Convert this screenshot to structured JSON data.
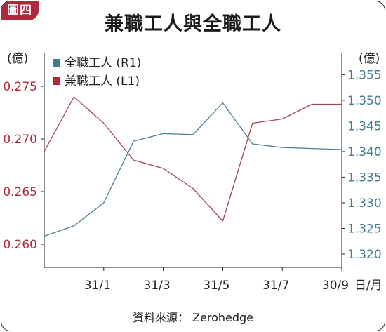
{
  "badge": "圖四",
  "chart_data": {
    "type": "line",
    "title": "兼職工人與全職工人",
    "source": "資料來源： Zerohedge",
    "x_categories": [
      "31/1",
      "31/3",
      "31/5",
      "31/7",
      "30/9"
    ],
    "x_unit": "日/月",
    "left_axis": {
      "unit": "(億)",
      "ticks": [
        "0.260",
        "0.265",
        "0.270",
        "0.275"
      ],
      "ylim": [
        0.2578,
        0.2782
      ],
      "color": "#b0283a"
    },
    "right_axis": {
      "unit": "(億)",
      "ticks": [
        "1.320",
        "1.325",
        "1.330",
        "1.335",
        "1.340",
        "1.345",
        "1.350",
        "1.355"
      ],
      "ylim": [
        1.3174,
        1.3593
      ],
      "color": "#3d7d93"
    },
    "series": [
      {
        "name": "全職工人 (R1)",
        "axis": "right",
        "color": "#4e7f93",
        "x": [
          0,
          0.5,
          1.0,
          1.5,
          2.0,
          2.5,
          3.0,
          3.5,
          4.0,
          4.5,
          5.0
        ],
        "y": [
          1.3235,
          1.3255,
          1.33,
          1.342,
          1.3435,
          1.3433,
          1.3495,
          1.3415,
          1.3408,
          1.3406,
          1.3404
        ]
      },
      {
        "name": "兼職工人 (L1)",
        "axis": "left",
        "color": "#a04550",
        "x": [
          0,
          0.5,
          1.0,
          1.5,
          2.0,
          2.5,
          3.0,
          3.5,
          4.0,
          4.5,
          5.0
        ],
        "y": [
          0.2688,
          0.274,
          0.2715,
          0.268,
          0.2672,
          0.2653,
          0.2622,
          0.2715,
          0.2719,
          0.2733,
          0.2733
        ]
      }
    ]
  }
}
